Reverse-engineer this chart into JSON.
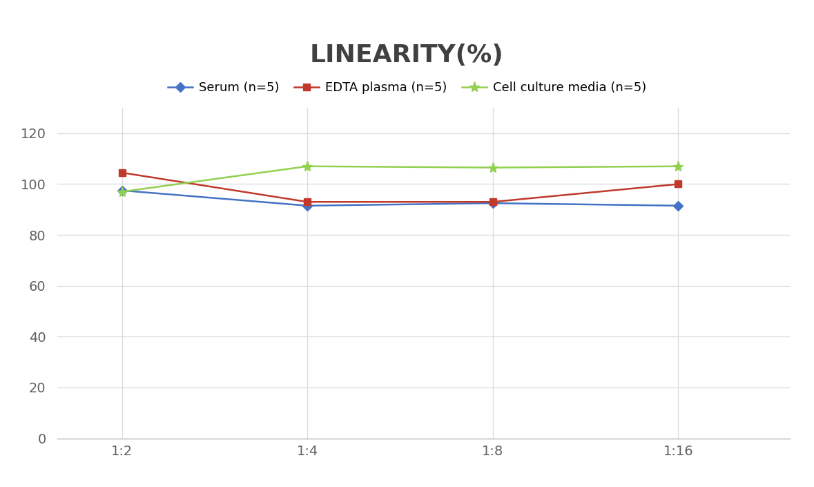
{
  "title": "LINEARITY(%)",
  "x_labels": [
    "1:2",
    "1:4",
    "1:8",
    "1:16"
  ],
  "x_positions": [
    0,
    1,
    2,
    3
  ],
  "series": [
    {
      "label": "Serum (n=5)",
      "values": [
        97.5,
        91.5,
        92.5,
        91.5
      ],
      "color": "#4472C4",
      "marker": "D",
      "marker_size": 7,
      "linewidth": 1.8
    },
    {
      "label": "EDTA plasma (n=5)",
      "values": [
        104.5,
        93.0,
        93.0,
        100.0
      ],
      "color": "#C0392B",
      "marker": "s",
      "marker_size": 7,
      "linewidth": 1.8
    },
    {
      "label": "Cell culture media (n=5)",
      "values": [
        97.0,
        107.0,
        106.5,
        107.0
      ],
      "color": "#92D050",
      "marker": "*",
      "marker_size": 11,
      "linewidth": 1.8
    }
  ],
  "ylim": [
    0,
    130
  ],
  "yticks": [
    0,
    20,
    40,
    60,
    80,
    100,
    120
  ],
  "grid_color": "#DDDDDD",
  "background_color": "#FFFFFF",
  "title_fontsize": 26,
  "legend_fontsize": 13,
  "tick_fontsize": 14,
  "title_color": "#404040",
  "tick_color": "#606060"
}
